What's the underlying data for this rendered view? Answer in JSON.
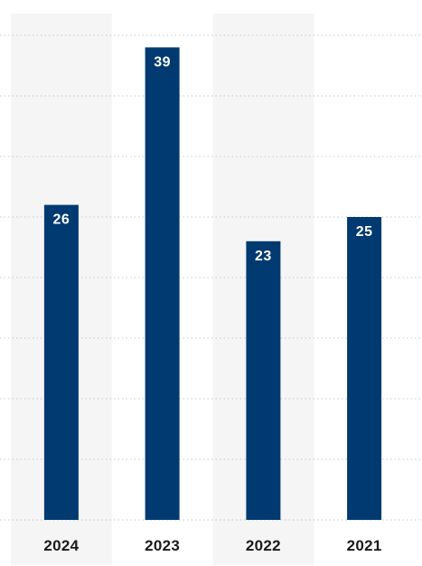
{
  "chart_data": {
    "type": "bar",
    "title": "",
    "xlabel": "",
    "ylabel": "",
    "categories": [
      "2024",
      "2023",
      "2022",
      "2021"
    ],
    "values": [
      26,
      39,
      23,
      25
    ],
    "value_labels": [
      "26",
      "39",
      "23",
      "25"
    ],
    "ylim": [
      0,
      40
    ],
    "grid": true,
    "legend": "none",
    "colors": {
      "bar": "#003a70",
      "band": "#f5f5f5",
      "grid": "#c8c8c8",
      "value_label": "#ffffff",
      "tick_label": "#1a1a1a"
    }
  }
}
